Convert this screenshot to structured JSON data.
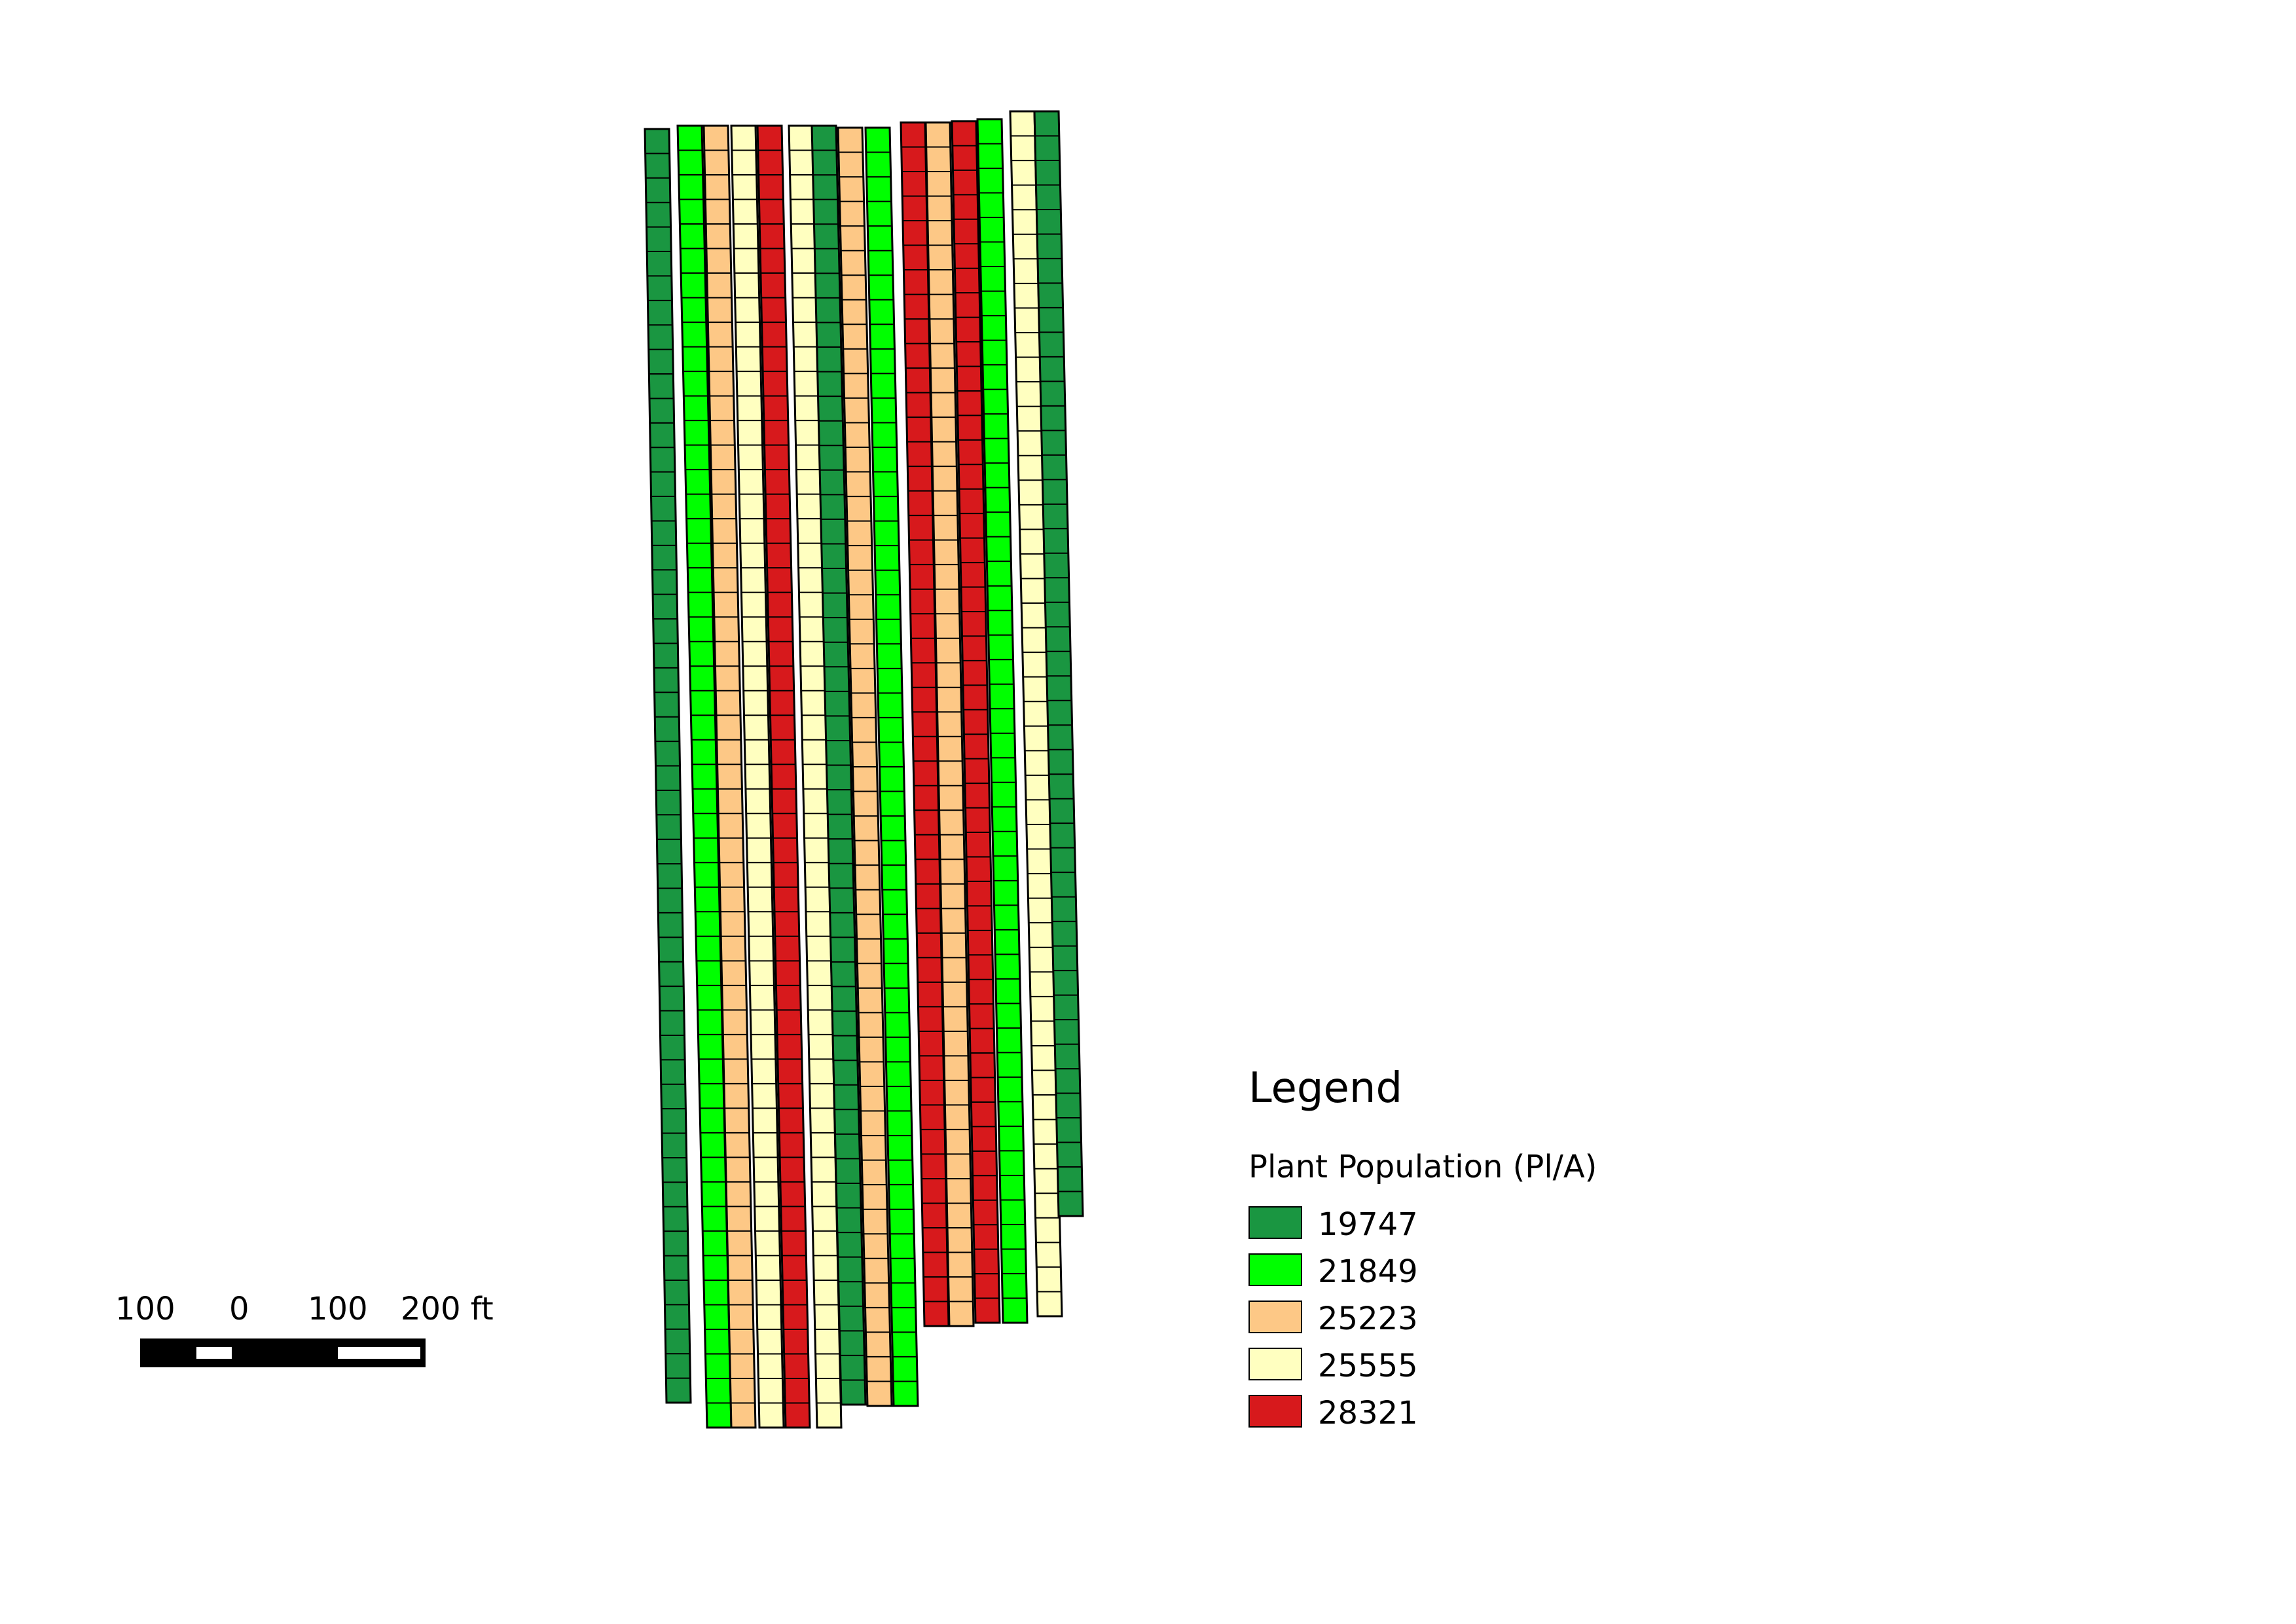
{
  "legend": {
    "title": "Legend",
    "subtitle": "Plant Population (Pl/A)",
    "classes": [
      {
        "label": "19747",
        "color": "#1a9641"
      },
      {
        "label": "21849",
        "color": "#00ff00"
      },
      {
        "label": "25223",
        "color": "#fdc886"
      },
      {
        "label": "25555",
        "color": "#ffffc0"
      },
      {
        "label": "28321",
        "color": "#d7191c"
      }
    ]
  },
  "scalebar": {
    "labels": [
      "100",
      "0",
      "100",
      "200 ft"
    ]
  },
  "strips": [
    {
      "class": 0
    },
    {
      "class": 1
    },
    {
      "class": 2
    },
    {
      "class": 3
    },
    {
      "class": 4
    },
    {
      "class": 3
    },
    {
      "class": 0
    },
    {
      "class": 2
    },
    {
      "class": 1
    },
    {
      "class": 4
    },
    {
      "class": 2
    },
    {
      "class": 4
    },
    {
      "class": 1
    },
    {
      "class": 3
    },
    {
      "class": 0
    }
  ]
}
